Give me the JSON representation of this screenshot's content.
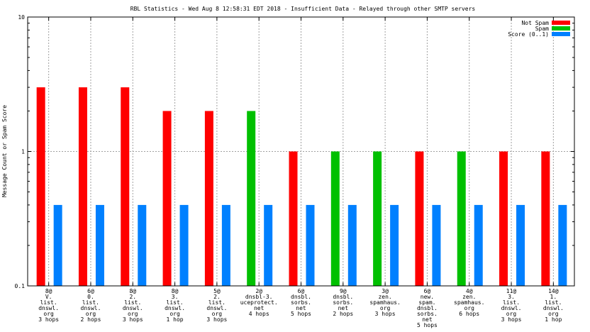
{
  "chart_data": {
    "type": "bar",
    "title": "RBL Statistics - Wed Aug  8 12:58:31 EDT 2018 - Insufficient Data - Relayed through other SMTP servers",
    "ylabel": "Message Count or Spam Score",
    "xlabel": "",
    "y_scale": "log",
    "ylim": [
      0.1,
      10
    ],
    "y_ticks": [
      "0.1",
      "1",
      "10"
    ],
    "grid": true,
    "legend_position": "top-right",
    "categories": [
      [
        "8@",
        "V.",
        "list.",
        "dnswl.",
        "org",
        "3 hops"
      ],
      [
        "6@",
        "0.",
        "list.",
        "dnswl.",
        "org",
        "2 hops"
      ],
      [
        "8@",
        "2.",
        "list.",
        "dnswl.",
        "org",
        "3 hops"
      ],
      [
        "8@",
        "3.",
        "list.",
        "dnswl.",
        "org",
        "1 hop"
      ],
      [
        "5@",
        "2.",
        "list.",
        "dnswl.",
        "org",
        "3 hops"
      ],
      [
        "2@",
        "dnsbl-3.",
        "uceprotect.",
        "net",
        "4 hops"
      ],
      [
        "6@",
        "dnsbl.",
        "sorbs.",
        "net",
        "5 hops"
      ],
      [
        "9@",
        "dnsbl.",
        "sorbs.",
        "net",
        "2 hops"
      ],
      [
        "3@",
        "zen.",
        "spamhaus.",
        "org",
        "3 hops"
      ],
      [
        "6@",
        "new.",
        "spam.",
        "dnsbl.",
        "sorbs.",
        "net",
        "5 hops"
      ],
      [
        "4@",
        "zen.",
        "spamhaus.",
        "org",
        "6 hops"
      ],
      [
        "11@",
        "3.",
        "list.",
        "dnswl.",
        "org",
        "3 hops"
      ],
      [
        "14@",
        "1.",
        "list.",
        "dnswl.",
        "org",
        "1 hop"
      ]
    ],
    "series": [
      {
        "name": "Not Spam",
        "color": "#ff0000",
        "values": [
          3,
          3,
          3,
          2,
          2,
          null,
          1,
          null,
          null,
          1,
          null,
          1,
          1
        ]
      },
      {
        "name": "Spam",
        "color": "#00c000",
        "values": [
          null,
          null,
          null,
          null,
          null,
          2,
          null,
          1,
          1,
          null,
          1,
          null,
          null
        ]
      },
      {
        "name": "Score (0..1)",
        "color": "#0080ff",
        "values": [
          0.4,
          0.4,
          0.4,
          0.4,
          0.4,
          0.4,
          0.4,
          0.4,
          0.4,
          0.4,
          0.4,
          0.4,
          0.4
        ]
      }
    ]
  }
}
